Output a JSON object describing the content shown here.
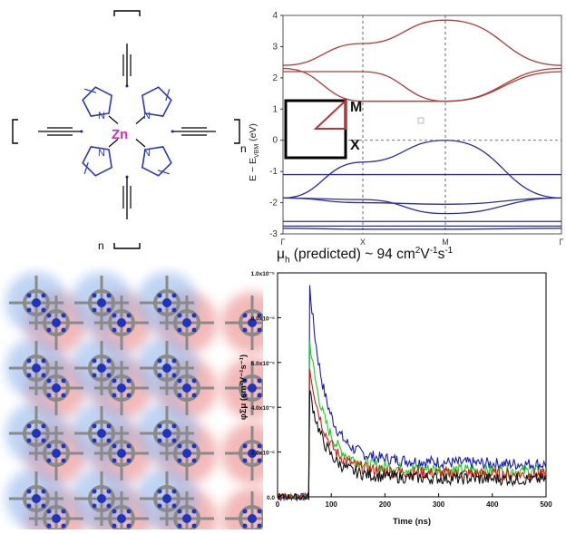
{
  "molecule": {
    "metal_label": "Zn",
    "nitrogen_label": "N",
    "repeat_label": "n",
    "colors": {
      "ring": "#2b35c8",
      "metal": "#e020c8",
      "bond": "#000000"
    }
  },
  "band_structure": {
    "ylabel": "E − E_VBM (eV)",
    "ylabel_main": "E − E",
    "ylabel_sub": "VBM",
    "ylabel_unit": " (eV)",
    "kpoints": [
      "Γ",
      "X",
      "M",
      "Γ"
    ],
    "bz_labels": {
      "corner": "M",
      "edge": "X"
    },
    "colors": {
      "conduction": "#b03a36",
      "valence": "#2c2ca0"
    },
    "mobility": {
      "mu": "μ",
      "sub": "h",
      "text": " (predicted)  ~ 94  cm",
      "sup1": "2",
      "mid": "V",
      "sup2": "-1",
      "end": "s",
      "sup3": "-1"
    }
  },
  "lattice": {
    "colors": {
      "pink_glow": "#e88080",
      "blue_glow": "#8ab0e8",
      "core": "#2233bb",
      "atoms": "#8a8a8a"
    }
  },
  "chart_data": [
    {
      "type": "line",
      "title": "",
      "xlabel": "Time (ns)",
      "ylabel": "φΣμ (cm²V⁻¹s⁻¹)",
      "xlim": [
        0,
        500
      ],
      "ylim": [
        0,
        1e-05
      ],
      "x_ticks": [
        "0",
        "100",
        "200",
        "300",
        "400",
        "500"
      ],
      "y_ticks": [
        "0.0",
        "2.0x10⁻⁶",
        "4.0x10⁻⁶",
        "6.0x10⁻⁶",
        "8.0x10⁻⁶",
        "1.0x10⁻⁵"
      ],
      "grid": false,
      "series": [
        {
          "color": "#1818c8",
          "onset": 60,
          "peak": 8.8e-06,
          "tail": 1.4e-06
        },
        {
          "color": "#1ad01a",
          "onset": 60,
          "peak": 6.5e-06,
          "tail": 1.1e-06
        },
        {
          "color": "#d81818",
          "onset": 60,
          "peak": 5.4e-06,
          "tail": 9.5e-07
        },
        {
          "color": "#111111",
          "onset": 60,
          "peak": 4.4e-06,
          "tail": 7.5e-07
        }
      ]
    },
    {
      "type": "line",
      "title": "",
      "xlabel": "",
      "ylabel": "E − E_VBM (eV)",
      "ylim": [
        -3,
        4
      ],
      "y_ticks": [
        "4",
        "3",
        "2",
        "1",
        "0",
        "-1",
        "-2",
        "-3"
      ],
      "x_categories": [
        "Γ",
        "X",
        "M",
        "Γ"
      ]
    }
  ]
}
